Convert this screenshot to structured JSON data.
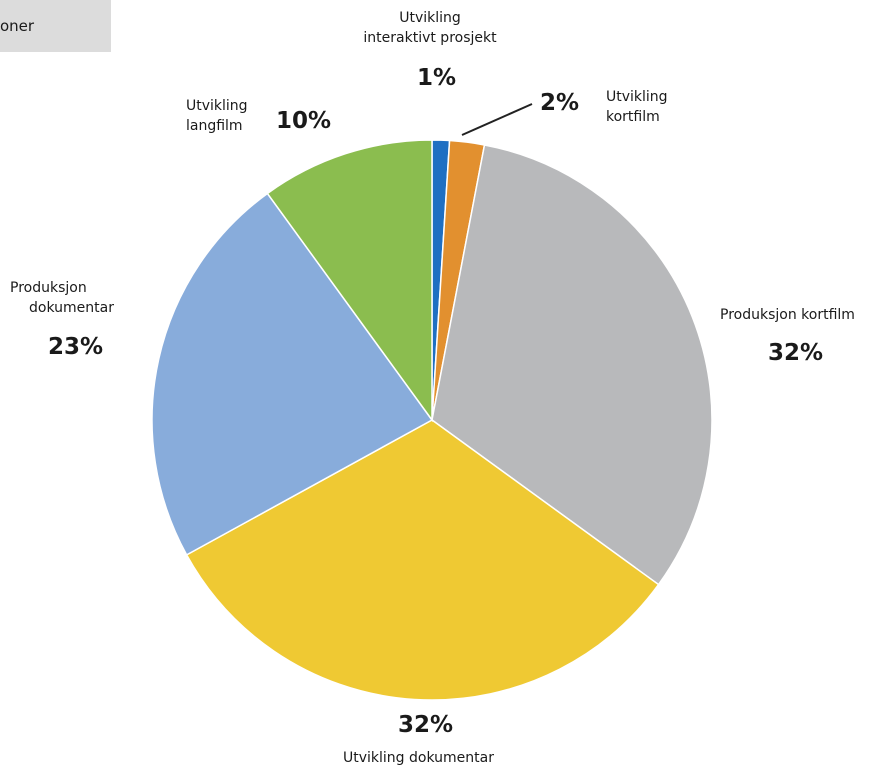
{
  "header_tab": {
    "label": "oner"
  },
  "chart_data": {
    "type": "pie",
    "title": "",
    "slices": [
      {
        "label": "Utvikling interaktivt prosjekt",
        "line1": "Utvikling",
        "line2": "interaktivt prosjekt",
        "value": 1,
        "pct_label": "1%",
        "color": "#1f6fc2"
      },
      {
        "label": "Utvikling kortfilm",
        "line1": "Utvikling",
        "line2": "kortfilm",
        "value": 2,
        "pct_label": "2%",
        "color": "#e2902f"
      },
      {
        "label": "Produksjon kortfilm",
        "line1": "Produksjon kortfilm",
        "line2": "",
        "value": 32,
        "pct_label": "32%",
        "color": "#b8b9bb"
      },
      {
        "label": "Utvikling dokumentar",
        "line1": "Utvikling dokumentar",
        "line2": "",
        "value": 32,
        "pct_label": "32%",
        "color": "#efc933"
      },
      {
        "label": "Produksjon dokumentar",
        "line1": "Produksjon",
        "line2": "dokumentar",
        "value": 23,
        "pct_label": "23%",
        "color": "#88acdb"
      },
      {
        "label": "Utvikling langfilm",
        "line1": "Utvikling",
        "line2": "langfilm",
        "value": 10,
        "pct_label": "10%",
        "color": "#8bbd4f"
      }
    ]
  }
}
